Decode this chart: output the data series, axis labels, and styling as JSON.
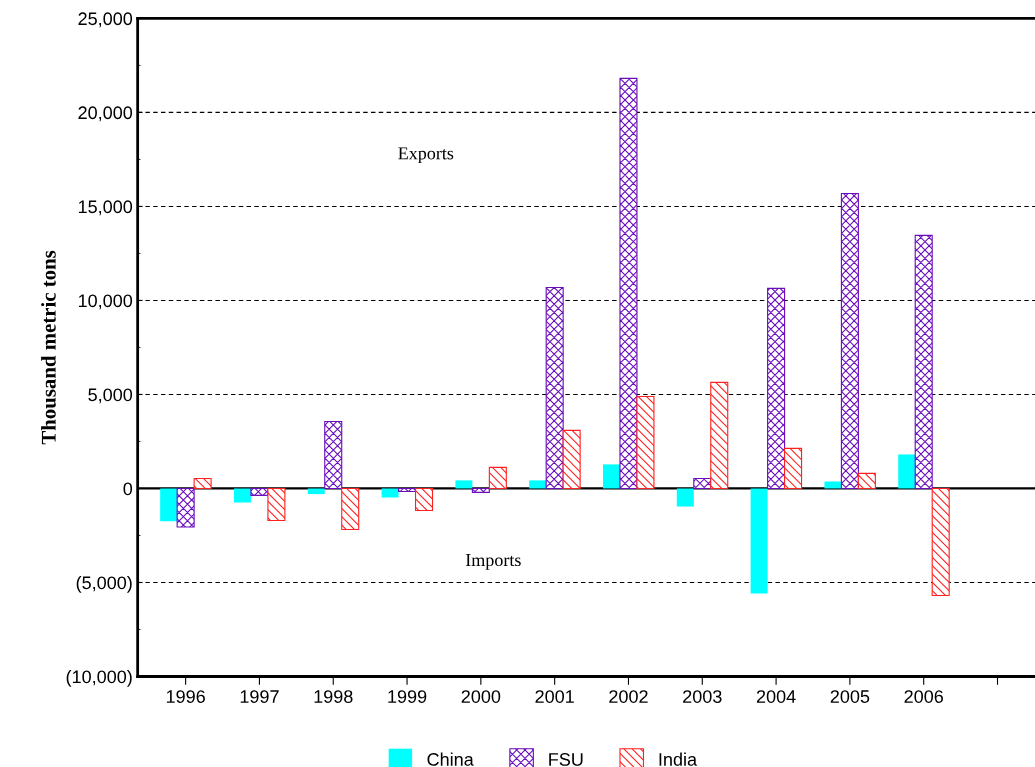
{
  "chart_data": {
    "type": "bar",
    "ylabel": "Thousand metric tons",
    "categories": [
      "1996",
      "1997",
      "1998",
      "1999",
      "2000",
      "2001",
      "2002",
      "2003",
      "2004",
      "2005",
      "2006",
      null
    ],
    "series": [
      {
        "name": "China",
        "color": "#00ffff",
        "values": [
          -1750,
          -750,
          -300,
          -480,
          430,
          430,
          1280,
          -960,
          -5590,
          370,
          1810,
          null
        ]
      },
      {
        "name": "FSU",
        "color": "#6a0dbd",
        "values": [
          -2050,
          -370,
          3560,
          -160,
          -210,
          10690,
          21810,
          530,
          10640,
          15690,
          13460,
          null
        ]
      },
      {
        "name": "India",
        "color": "#ff2020",
        "values": [
          530,
          -1700,
          -2180,
          -1170,
          1120,
          3090,
          4890,
          5640,
          2130,
          800,
          -5690,
          null
        ]
      }
    ],
    "ylim": [
      -10000,
      25000
    ],
    "yticks": [
      {
        "value": -10000,
        "label": "(10,000)"
      },
      {
        "value": -5000,
        "label": "(5,000)"
      },
      {
        "value": 0,
        "label": "0"
      },
      {
        "value": 5000,
        "label": "5,000"
      },
      {
        "value": 10000,
        "label": "10,000"
      },
      {
        "value": 15000,
        "label": "15,000"
      },
      {
        "value": 20000,
        "label": "20,000"
      },
      {
        "value": 25000,
        "label": "25,000"
      }
    ],
    "grid": "y",
    "legend": "bottom",
    "ref_lines": [
      {
        "axis": "y",
        "value": 0,
        "color": "#000000",
        "line_style": "solid"
      }
    ],
    "annotations": [
      "Exports",
      "Imports"
    ]
  }
}
